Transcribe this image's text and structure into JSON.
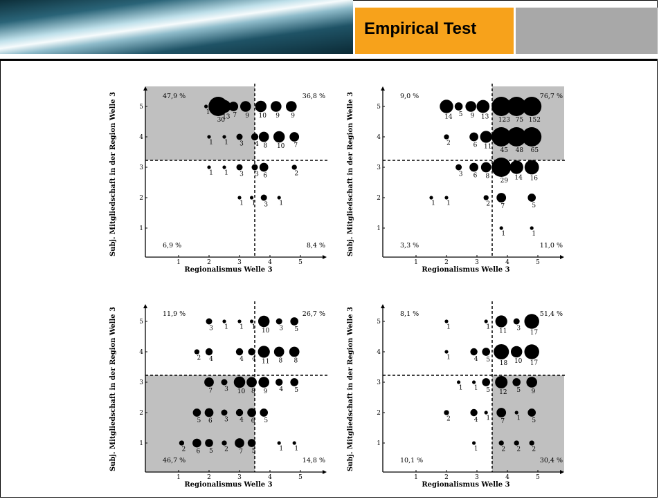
{
  "header": {
    "title": "Empirical Test"
  },
  "colors": {
    "accent": "#f7a21b",
    "side_box": "#a8a8a8",
    "shade": "#c0c0c0",
    "marker": "#000000"
  },
  "chart_data": [
    {
      "type": "scatter",
      "xlabel": "Regionalismus Welle 3",
      "ylabel": "Subj. Mitgliedschaft in der Region Welle 3",
      "x_ticks": [
        "1",
        "2",
        "3",
        "4",
        "5"
      ],
      "y_ticks": [
        "1",
        "2",
        "3",
        "4",
        "5"
      ],
      "shaded_quadrant": "top-left",
      "quadrant_percents": {
        "top_left": "47,9 %",
        "top_right": "36,8 %",
        "bottom_left": "6,9 %",
        "bottom_right": "8,4 %"
      },
      "points": [
        {
          "x": 1.9,
          "y": 5,
          "n": 1
        },
        {
          "x": 2.3,
          "y": 5,
          "n": 30
        },
        {
          "x": 2.5,
          "y": 5,
          "n": 13
        },
        {
          "x": 2.8,
          "y": 5,
          "n": 7
        },
        {
          "x": 3.2,
          "y": 5,
          "n": 9
        },
        {
          "x": 3.7,
          "y": 5,
          "n": 10
        },
        {
          "x": 4.2,
          "y": 5,
          "n": 9
        },
        {
          "x": 4.7,
          "y": 5,
          "n": 9
        },
        {
          "x": 2.0,
          "y": 4,
          "n": 1
        },
        {
          "x": 2.5,
          "y": 4,
          "n": 1
        },
        {
          "x": 3.0,
          "y": 4,
          "n": 3
        },
        {
          "x": 3.5,
          "y": 4,
          "n": 4
        },
        {
          "x": 3.8,
          "y": 4,
          "n": 8
        },
        {
          "x": 4.3,
          "y": 4,
          "n": 10
        },
        {
          "x": 4.8,
          "y": 4,
          "n": 7
        },
        {
          "x": 2.0,
          "y": 3,
          "n": 1
        },
        {
          "x": 2.5,
          "y": 3,
          "n": 1
        },
        {
          "x": 3.0,
          "y": 3,
          "n": 3
        },
        {
          "x": 3.5,
          "y": 3,
          "n": 3
        },
        {
          "x": 3.8,
          "y": 3,
          "n": 6
        },
        {
          "x": 4.8,
          "y": 3,
          "n": 2
        },
        {
          "x": 3.0,
          "y": 2,
          "n": 1
        },
        {
          "x": 3.4,
          "y": 2,
          "n": 1
        },
        {
          "x": 3.8,
          "y": 2,
          "n": 3
        },
        {
          "x": 4.3,
          "y": 2,
          "n": 1
        }
      ]
    },
    {
      "type": "scatter",
      "xlabel": "Regionalismus Welle 3",
      "ylabel": "Subj. Mitgliedschaft in der Region Welle 3",
      "x_ticks": [
        "1",
        "2",
        "3",
        "4",
        "5"
      ],
      "y_ticks": [
        "1",
        "2",
        "3",
        "4",
        "5"
      ],
      "shaded_quadrant": "top-right",
      "quadrant_percents": {
        "top_left": "9,0 %",
        "top_right": "76,7 %",
        "bottom_left": "3,3 %",
        "bottom_right": "11,0 %"
      },
      "points": [
        {
          "x": 2.0,
          "y": 5,
          "n": 14
        },
        {
          "x": 2.4,
          "y": 5,
          "n": 5
        },
        {
          "x": 2.8,
          "y": 5,
          "n": 9
        },
        {
          "x": 3.2,
          "y": 5,
          "n": 13
        },
        {
          "x": 3.8,
          "y": 5,
          "n": 123
        },
        {
          "x": 4.3,
          "y": 5,
          "n": 75
        },
        {
          "x": 4.8,
          "y": 5,
          "n": 152
        },
        {
          "x": 2.0,
          "y": 4,
          "n": 2
        },
        {
          "x": 2.9,
          "y": 4,
          "n": 6
        },
        {
          "x": 3.3,
          "y": 4,
          "n": 11
        },
        {
          "x": 3.8,
          "y": 4,
          "n": 45
        },
        {
          "x": 4.3,
          "y": 4,
          "n": 48
        },
        {
          "x": 4.8,
          "y": 4,
          "n": 65
        },
        {
          "x": 2.4,
          "y": 3,
          "n": 3
        },
        {
          "x": 2.9,
          "y": 3,
          "n": 6
        },
        {
          "x": 3.3,
          "y": 3,
          "n": 8
        },
        {
          "x": 3.8,
          "y": 3,
          "n": 29
        },
        {
          "x": 4.3,
          "y": 3,
          "n": 14
        },
        {
          "x": 4.8,
          "y": 3,
          "n": 16
        },
        {
          "x": 1.5,
          "y": 2,
          "n": 1
        },
        {
          "x": 2.0,
          "y": 2,
          "n": 1
        },
        {
          "x": 3.3,
          "y": 2,
          "n": 2
        },
        {
          "x": 3.8,
          "y": 2,
          "n": 7
        },
        {
          "x": 4.8,
          "y": 2,
          "n": 5
        },
        {
          "x": 3.8,
          "y": 1,
          "n": 1
        },
        {
          "x": 4.8,
          "y": 1,
          "n": 1
        }
      ]
    },
    {
      "type": "scatter",
      "xlabel": "Regionalismus Welle 3",
      "ylabel": "Subj. Mitgliedschaft in der Region Welle 3",
      "x_ticks": [
        "1",
        "2",
        "3",
        "4",
        "5"
      ],
      "y_ticks": [
        "1",
        "2",
        "3",
        "4",
        "5"
      ],
      "shaded_quadrant": "bottom-left",
      "quadrant_percents": {
        "top_left": "11,9 %",
        "top_right": "26,7 %",
        "bottom_left": "46,7 %",
        "bottom_right": "14,8 %"
      },
      "points": [
        {
          "x": 2.0,
          "y": 5,
          "n": 3
        },
        {
          "x": 2.5,
          "y": 5,
          "n": 1
        },
        {
          "x": 3.0,
          "y": 5,
          "n": 1
        },
        {
          "x": 3.4,
          "y": 5,
          "n": 1
        },
        {
          "x": 3.8,
          "y": 5,
          "n": 10
        },
        {
          "x": 4.3,
          "y": 5,
          "n": 3
        },
        {
          "x": 4.8,
          "y": 5,
          "n": 5
        },
        {
          "x": 1.6,
          "y": 4,
          "n": 2
        },
        {
          "x": 2.0,
          "y": 4,
          "n": 4
        },
        {
          "x": 3.0,
          "y": 4,
          "n": 4
        },
        {
          "x": 3.4,
          "y": 4,
          "n": 4
        },
        {
          "x": 3.8,
          "y": 4,
          "n": 11
        },
        {
          "x": 4.3,
          "y": 4,
          "n": 8
        },
        {
          "x": 4.8,
          "y": 4,
          "n": 8
        },
        {
          "x": 2.0,
          "y": 3,
          "n": 7
        },
        {
          "x": 2.5,
          "y": 3,
          "n": 3
        },
        {
          "x": 3.0,
          "y": 3,
          "n": 10
        },
        {
          "x": 3.4,
          "y": 3,
          "n": 8
        },
        {
          "x": 3.8,
          "y": 3,
          "n": 9
        },
        {
          "x": 4.3,
          "y": 3,
          "n": 4
        },
        {
          "x": 4.8,
          "y": 3,
          "n": 5
        },
        {
          "x": 1.6,
          "y": 2,
          "n": 5
        },
        {
          "x": 2.0,
          "y": 2,
          "n": 6
        },
        {
          "x": 2.5,
          "y": 2,
          "n": 3
        },
        {
          "x": 3.0,
          "y": 2,
          "n": 4
        },
        {
          "x": 3.4,
          "y": 2,
          "n": 6
        },
        {
          "x": 3.8,
          "y": 2,
          "n": 5
        },
        {
          "x": 1.1,
          "y": 1,
          "n": 2
        },
        {
          "x": 1.6,
          "y": 1,
          "n": 6
        },
        {
          "x": 2.0,
          "y": 1,
          "n": 5
        },
        {
          "x": 2.5,
          "y": 1,
          "n": 2
        },
        {
          "x": 3.0,
          "y": 1,
          "n": 7
        },
        {
          "x": 3.4,
          "y": 1,
          "n": 5
        },
        {
          "x": 4.3,
          "y": 1,
          "n": 1
        },
        {
          "x": 4.8,
          "y": 1,
          "n": 1
        }
      ]
    },
    {
      "type": "scatter",
      "xlabel": "Regionalismus Welle 3",
      "ylabel": "Subj. Mitgliedschaft in der Region Welle 3",
      "x_ticks": [
        "1",
        "2",
        "3",
        "4",
        "5"
      ],
      "y_ticks": [
        "1",
        "2",
        "3",
        "4",
        "5"
      ],
      "shaded_quadrant": "bottom-right",
      "quadrant_percents": {
        "top_left": "8,1 %",
        "top_right": "51,4 %",
        "bottom_left": "10,1 %",
        "bottom_right": "30,4 %"
      },
      "points": [
        {
          "x": 2.0,
          "y": 5,
          "n": 1
        },
        {
          "x": 3.3,
          "y": 5,
          "n": 1
        },
        {
          "x": 3.8,
          "y": 5,
          "n": 11
        },
        {
          "x": 4.3,
          "y": 5,
          "n": 3
        },
        {
          "x": 4.8,
          "y": 5,
          "n": 17
        },
        {
          "x": 2.0,
          "y": 4,
          "n": 1
        },
        {
          "x": 2.9,
          "y": 4,
          "n": 4
        },
        {
          "x": 3.3,
          "y": 4,
          "n": 5
        },
        {
          "x": 3.8,
          "y": 4,
          "n": 18
        },
        {
          "x": 4.3,
          "y": 4,
          "n": 10
        },
        {
          "x": 4.8,
          "y": 4,
          "n": 17
        },
        {
          "x": 2.4,
          "y": 3,
          "n": 1
        },
        {
          "x": 2.9,
          "y": 3,
          "n": 1
        },
        {
          "x": 3.3,
          "y": 3,
          "n": 5
        },
        {
          "x": 3.8,
          "y": 3,
          "n": 12
        },
        {
          "x": 4.3,
          "y": 3,
          "n": 5
        },
        {
          "x": 4.8,
          "y": 3,
          "n": 9
        },
        {
          "x": 2.0,
          "y": 2,
          "n": 2
        },
        {
          "x": 2.9,
          "y": 2,
          "n": 4
        },
        {
          "x": 3.3,
          "y": 2,
          "n": 1
        },
        {
          "x": 3.8,
          "y": 2,
          "n": 7
        },
        {
          "x": 4.3,
          "y": 2,
          "n": 1
        },
        {
          "x": 4.8,
          "y": 2,
          "n": 5
        },
        {
          "x": 2.9,
          "y": 1,
          "n": 1
        },
        {
          "x": 3.8,
          "y": 1,
          "n": 2
        },
        {
          "x": 4.3,
          "y": 1,
          "n": 2
        },
        {
          "x": 4.8,
          "y": 1,
          "n": 2
        }
      ]
    }
  ]
}
